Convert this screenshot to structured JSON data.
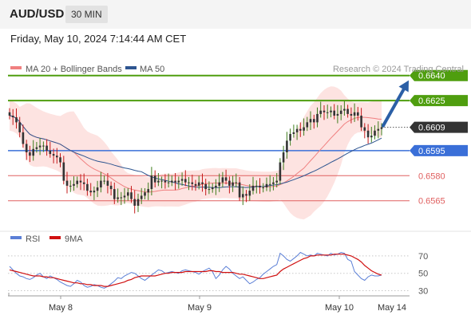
{
  "header": {
    "symbol": "AUD/USD",
    "timeframe": "30 MIN"
  },
  "date_line": "Friday, May 10, 2024 7:14:44 AM CET",
  "legend": {
    "ma20": "MA 20 + Bollinger Bands",
    "ma50": "MA 50",
    "credit": "Research © 2024 Trading Central",
    "rsi": "RSI",
    "rsi_ma": "9MA"
  },
  "colors": {
    "ma20": "#f08080",
    "ma50": "#2e5590",
    "bands_fill": "#fde3e1",
    "resistance": "#4f9e0f",
    "pivot": "#3a6fd8",
    "support": "#e06060",
    "current": "#333333",
    "rsi": "#5b7fd6",
    "rsi_ma": "#d01010",
    "arrow": "#2b5fa6",
    "candle_up": "#3e7d1c",
    "candle_down": "#c41a1a",
    "candle_body": "#333333"
  },
  "chart_data": [
    {
      "type": "candlestick",
      "title": "AUD/USD",
      "timeframe": "30 MIN",
      "x_tick_labels": [
        "May 8",
        "May 9",
        "May 10",
        "May 14"
      ],
      "ylim": [
        0.6551,
        0.6648
      ],
      "levels": [
        {
          "label": "0.6640",
          "value": 0.664,
          "kind": "resistance"
        },
        {
          "label": "0.6625",
          "value": 0.6625,
          "kind": "resistance"
        },
        {
          "label": "0.6609",
          "value": 0.6609,
          "kind": "current"
        },
        {
          "label": "0.6595",
          "value": 0.6595,
          "kind": "pivot"
        },
        {
          "label": "0.6580",
          "value": 0.658,
          "kind": "support"
        },
        {
          "label": "0.6565",
          "value": 0.6565,
          "kind": "support"
        }
      ],
      "closes": [
        0.6616,
        0.6615,
        0.6612,
        0.6606,
        0.6599,
        0.6594,
        0.6592,
        0.6596,
        0.6597,
        0.6598,
        0.6598,
        0.6595,
        0.6593,
        0.6592,
        0.6591,
        0.6588,
        0.6577,
        0.6574,
        0.6574,
        0.6575,
        0.6577,
        0.6576,
        0.6575,
        0.6571,
        0.657,
        0.6571,
        0.6573,
        0.6577,
        0.6577,
        0.6574,
        0.6572,
        0.6566,
        0.6567,
        0.6567,
        0.6568,
        0.657,
        0.6566,
        0.6562,
        0.6566,
        0.6568,
        0.657,
        0.6572,
        0.658,
        0.6576,
        0.6577,
        0.6577,
        0.6576,
        0.6576,
        0.6577,
        0.6576,
        0.6577,
        0.6578,
        0.6576,
        0.6576,
        0.6575,
        0.6574,
        0.6576,
        0.6575,
        0.6572,
        0.6572,
        0.6573,
        0.6574,
        0.6576,
        0.6579,
        0.6577,
        0.6574,
        0.6576,
        0.6576,
        0.6567,
        0.6569,
        0.6568,
        0.6571,
        0.6574,
        0.6574,
        0.6573,
        0.6573,
        0.6575,
        0.6575,
        0.6576,
        0.6577,
        0.6588,
        0.6594,
        0.6601,
        0.6605,
        0.6606,
        0.6608,
        0.6607,
        0.6609,
        0.6612,
        0.6614,
        0.6612,
        0.6617,
        0.6619,
        0.6618,
        0.6618,
        0.6619,
        0.6616,
        0.6617,
        0.6619,
        0.662,
        0.6617,
        0.6616,
        0.6618,
        0.6616,
        0.6609,
        0.6607,
        0.6603,
        0.6604,
        0.6607,
        0.6608,
        0.6609
      ]
    },
    {
      "type": "line",
      "title": "RSI",
      "series": [
        {
          "name": "RSI"
        },
        {
          "name": "9MA"
        }
      ],
      "y_tick_labels": [
        "70",
        "50",
        "30"
      ],
      "ylim": [
        25,
        80
      ],
      "rsi": [
        58,
        54,
        50,
        47,
        46,
        44,
        43,
        45,
        48,
        50,
        46,
        44,
        47,
        45,
        43,
        40,
        38,
        36,
        35,
        38,
        42,
        40,
        36,
        34,
        35,
        37,
        36,
        34,
        33,
        35,
        38,
        41,
        45,
        44,
        47,
        49,
        51,
        50,
        47,
        44,
        42,
        45,
        48,
        51,
        54,
        53,
        50,
        51,
        52,
        51,
        50,
        53,
        54,
        53,
        52,
        51,
        49,
        52,
        54,
        56,
        52,
        44,
        48,
        54,
        58,
        55,
        50,
        47,
        44,
        46,
        42,
        38,
        40,
        43,
        45,
        49,
        52,
        55,
        58,
        60,
        73,
        70,
        66,
        64,
        67,
        70,
        74,
        72,
        70,
        71,
        70,
        73,
        72,
        71,
        70,
        73,
        71,
        72,
        74,
        73,
        66,
        64,
        52,
        48,
        44,
        42,
        46,
        48,
        47,
        47,
        48
      ],
      "rsi_ma": [
        54,
        53,
        52,
        51,
        50,
        49,
        48,
        47,
        47,
        47,
        46,
        46,
        45,
        45,
        44,
        43,
        42,
        41,
        40,
        39,
        39,
        38,
        38,
        37,
        37,
        36,
        36,
        36,
        35,
        35,
        36,
        37,
        38,
        39,
        40,
        42,
        43,
        45,
        46,
        47,
        47,
        47,
        47,
        47,
        48,
        49,
        50,
        50,
        51,
        51,
        51,
        51,
        52,
        52,
        52,
        52,
        52,
        52,
        52,
        53,
        53,
        52,
        52,
        51,
        51,
        51,
        51,
        50,
        49,
        49,
        48,
        47,
        46,
        45,
        44,
        44,
        45,
        46,
        47,
        48,
        52,
        55,
        57,
        59,
        61,
        63,
        65,
        67,
        68,
        70,
        70,
        71,
        71,
        71,
        71,
        71,
        72,
        72,
        72,
        72,
        71,
        70,
        68,
        66,
        63,
        59,
        56,
        53,
        51,
        49,
        48
      ]
    }
  ]
}
